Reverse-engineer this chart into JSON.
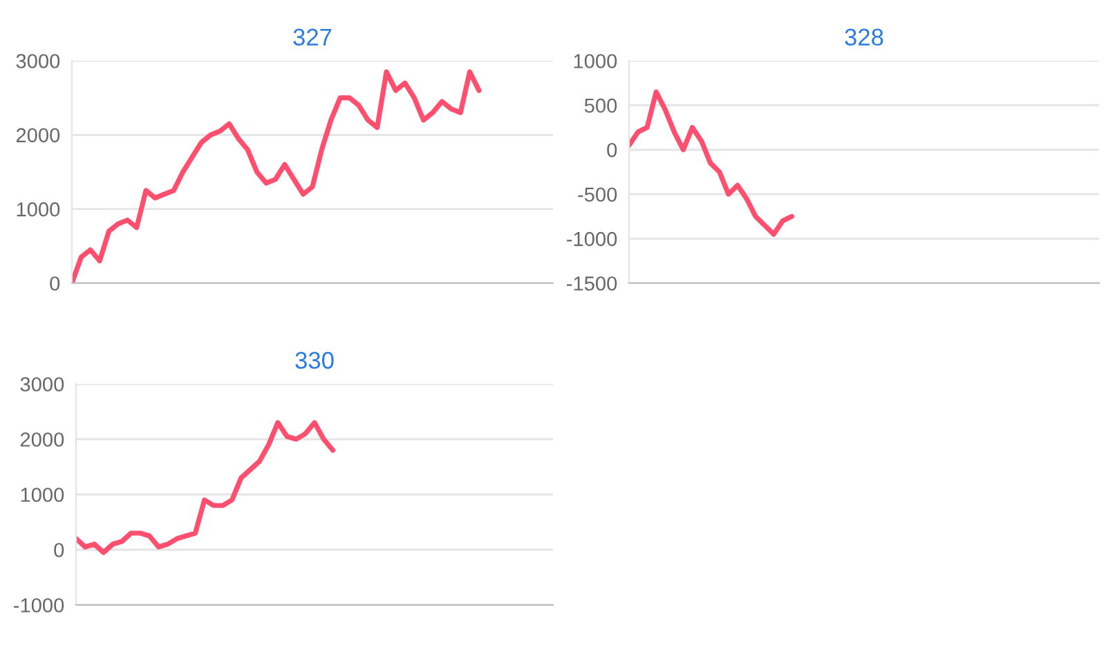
{
  "chart_data": [
    {
      "type": "line",
      "title": "327",
      "categories": [
        null,
        null,
        null,
        null,
        null,
        null,
        null,
        null,
        null,
        null,
        null,
        null,
        null,
        null,
        null,
        null,
        null,
        null,
        null,
        null,
        null,
        null,
        null,
        null,
        null,
        null,
        null,
        null,
        null,
        null,
        null,
        null,
        null,
        null,
        null,
        null,
        null,
        null,
        null,
        null,
        null,
        null,
        null,
        null,
        null,
        null,
        null,
        null,
        null,
        null,
        null,
        null,
        null
      ],
      "series": [
        {
          "color": "#ff4f6f",
          "values": [
            0,
            350,
            450,
            300,
            700,
            800,
            850,
            750,
            1250,
            1150,
            1200,
            1250,
            1500,
            1700,
            1900,
            2000,
            2050,
            2150,
            1950,
            1800,
            1500,
            1350,
            1400,
            1600,
            1400,
            1200,
            1300,
            1800,
            2200,
            2500,
            2500,
            2400,
            2200,
            2100,
            2850,
            2600,
            2700,
            2500,
            2200,
            2300,
            2450,
            2350,
            2300,
            2850,
            2600,
            null,
            null,
            null,
            null,
            null,
            null,
            null,
            null
          ]
        }
      ],
      "ylim": [
        0,
        3000
      ],
      "yticks": [
        0,
        1000,
        2000,
        3000
      ],
      "grid": "y",
      "tick_labels": "y",
      "marker": "none",
      "line_style": "solid"
    },
    {
      "type": "line",
      "title": "328",
      "categories": [
        null,
        null,
        null,
        null,
        null,
        null,
        null,
        null,
        null,
        null,
        null,
        null,
        null,
        null,
        null,
        null,
        null,
        null,
        null,
        null,
        null,
        null,
        null,
        null,
        null,
        null,
        null,
        null,
        null,
        null,
        null,
        null,
        null,
        null,
        null,
        null,
        null,
        null,
        null,
        null,
        null,
        null,
        null,
        null,
        null,
        null,
        null,
        null,
        null,
        null,
        null,
        null,
        null
      ],
      "series": [
        {
          "color": "#ff4f6f",
          "values": [
            50,
            200,
            250,
            650,
            450,
            200,
            0,
            250,
            100,
            -150,
            -250,
            -500,
            -400,
            -550,
            -750,
            -850,
            -950,
            -800,
            -750,
            null,
            null,
            null,
            null,
            null,
            null,
            null,
            null,
            null,
            null,
            null,
            null,
            null,
            null,
            null,
            null,
            null,
            null,
            null,
            null,
            null,
            null,
            null,
            null,
            null,
            null,
            null,
            null,
            null,
            null,
            null,
            null,
            null,
            null
          ]
        }
      ],
      "ylim": [
        -1500,
        1000
      ],
      "yticks": [
        -1500,
        -1000,
        -500,
        0,
        500,
        1000
      ],
      "grid": "y",
      "tick_labels": "y",
      "marker": "none",
      "line_style": "solid"
    },
    {
      "type": "line",
      "title": "330",
      "categories": [
        null,
        null,
        null,
        null,
        null,
        null,
        null,
        null,
        null,
        null,
        null,
        null,
        null,
        null,
        null,
        null,
        null,
        null,
        null,
        null,
        null,
        null,
        null,
        null,
        null,
        null,
        null,
        null,
        null,
        null,
        null,
        null,
        null,
        null,
        null,
        null,
        null,
        null,
        null,
        null,
        null,
        null,
        null,
        null,
        null,
        null,
        null,
        null,
        null,
        null,
        null,
        null,
        null
      ],
      "series": [
        {
          "color": "#ff4f6f",
          "values": [
            200,
            50,
            100,
            -50,
            100,
            150,
            300,
            300,
            250,
            50,
            100,
            200,
            250,
            300,
            900,
            800,
            800,
            900,
            1300,
            1450,
            1600,
            1900,
            2300,
            2050,
            2000,
            2100,
            2300,
            2000,
            1800,
            null,
            null,
            null,
            null,
            null,
            null,
            null,
            null,
            null,
            null,
            null,
            null,
            null,
            null,
            null,
            null,
            null,
            null,
            null,
            null,
            null,
            null,
            null,
            null
          ]
        }
      ],
      "ylim": [
        -1000,
        3000
      ],
      "yticks": [
        -1000,
        0,
        1000,
        2000,
        3000
      ],
      "grid": "y",
      "tick_labels": "y",
      "marker": "none",
      "line_style": "solid"
    }
  ]
}
